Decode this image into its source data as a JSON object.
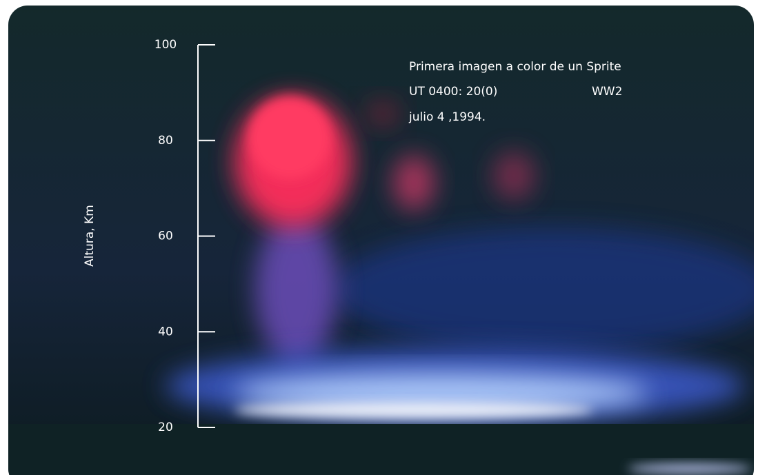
{
  "axis": {
    "label": "Altura, Km",
    "ticks": [
      100,
      80,
      60,
      40,
      20
    ]
  },
  "caption": {
    "title": "Primera imagen a color de un Sprite",
    "time": "UT 0400: 20(0)",
    "code": "WW2",
    "date": "julio 4 ,1994."
  }
}
